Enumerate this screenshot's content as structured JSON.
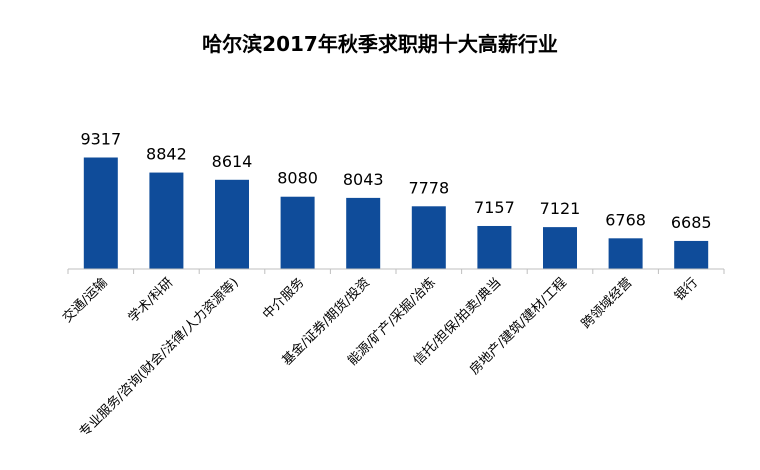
{
  "chart_data": {
    "type": "bar",
    "title": "哈尔滨2017年秋季求职期十大高薪行业",
    "categories": [
      "交通/运输",
      "学术/科研",
      "专业服务/咨询(财会/法律/人力资源等)",
      "中介服务",
      "基金/证券/期货/投资",
      "能源/矿产/采掘/冶炼",
      "信托/担保/拍卖/典当",
      "房地产/建筑/建材/工程",
      "跨领域经营",
      "银行"
    ],
    "values": [
      9317,
      8842,
      8614,
      8080,
      8043,
      7778,
      7157,
      7121,
      6768,
      6685
    ],
    "data_labels": [
      "9317",
      "8842",
      "8614",
      "8080",
      "8043",
      "7778",
      "7157",
      "7121",
      "6768",
      "6685"
    ],
    "ylim": [
      5800,
      10500
    ],
    "grid": false,
    "legend": "none",
    "colors": {
      "bar": "#0f4c9a",
      "axis": "#bfbfbf",
      "text": "#000000"
    }
  }
}
